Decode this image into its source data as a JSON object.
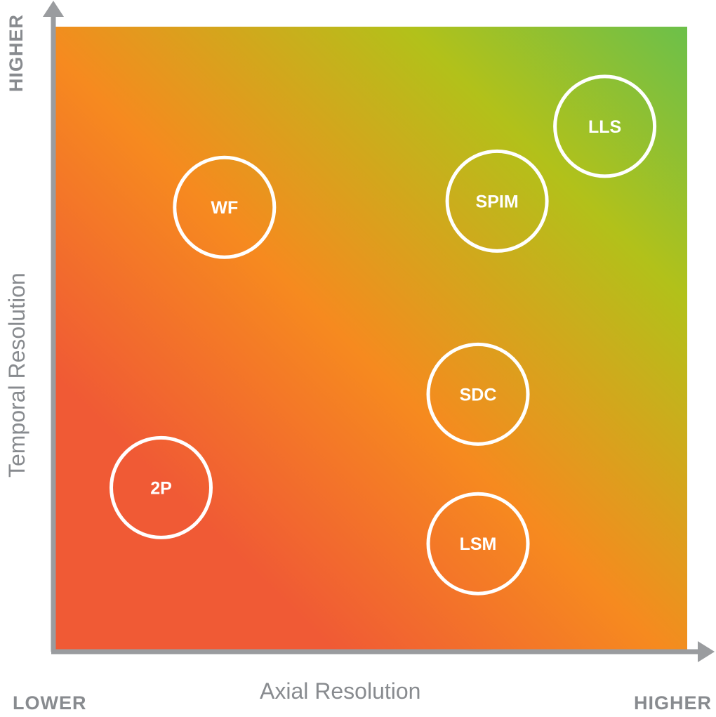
{
  "chart_data": {
    "type": "scatter",
    "xlabel": "Axial Resolution",
    "ylabel": "Temporal Resolution",
    "x_low_label": "LOWER",
    "x_high_label": "HIGHER",
    "y_high_label": "HIGHER",
    "xlim": [
      0,
      100
    ],
    "ylim": [
      0,
      100
    ],
    "grid": false,
    "points": [
      {
        "label": "WF",
        "x": 27,
        "y": 71
      },
      {
        "label": "SPIM",
        "x": 70,
        "y": 72
      },
      {
        "label": "LLS",
        "x": 87,
        "y": 84
      },
      {
        "label": "SDC",
        "x": 67,
        "y": 41
      },
      {
        "label": "2P",
        "x": 17,
        "y": 26
      },
      {
        "label": "LSM",
        "x": 67,
        "y": 17
      }
    ],
    "colors": {
      "low": "#f05a35",
      "mid": "#f68a1f",
      "mid_high": "#b2c11a",
      "high": "#6cc04a",
      "axis": "#9a9c9f",
      "marker": "#ffffff"
    }
  }
}
